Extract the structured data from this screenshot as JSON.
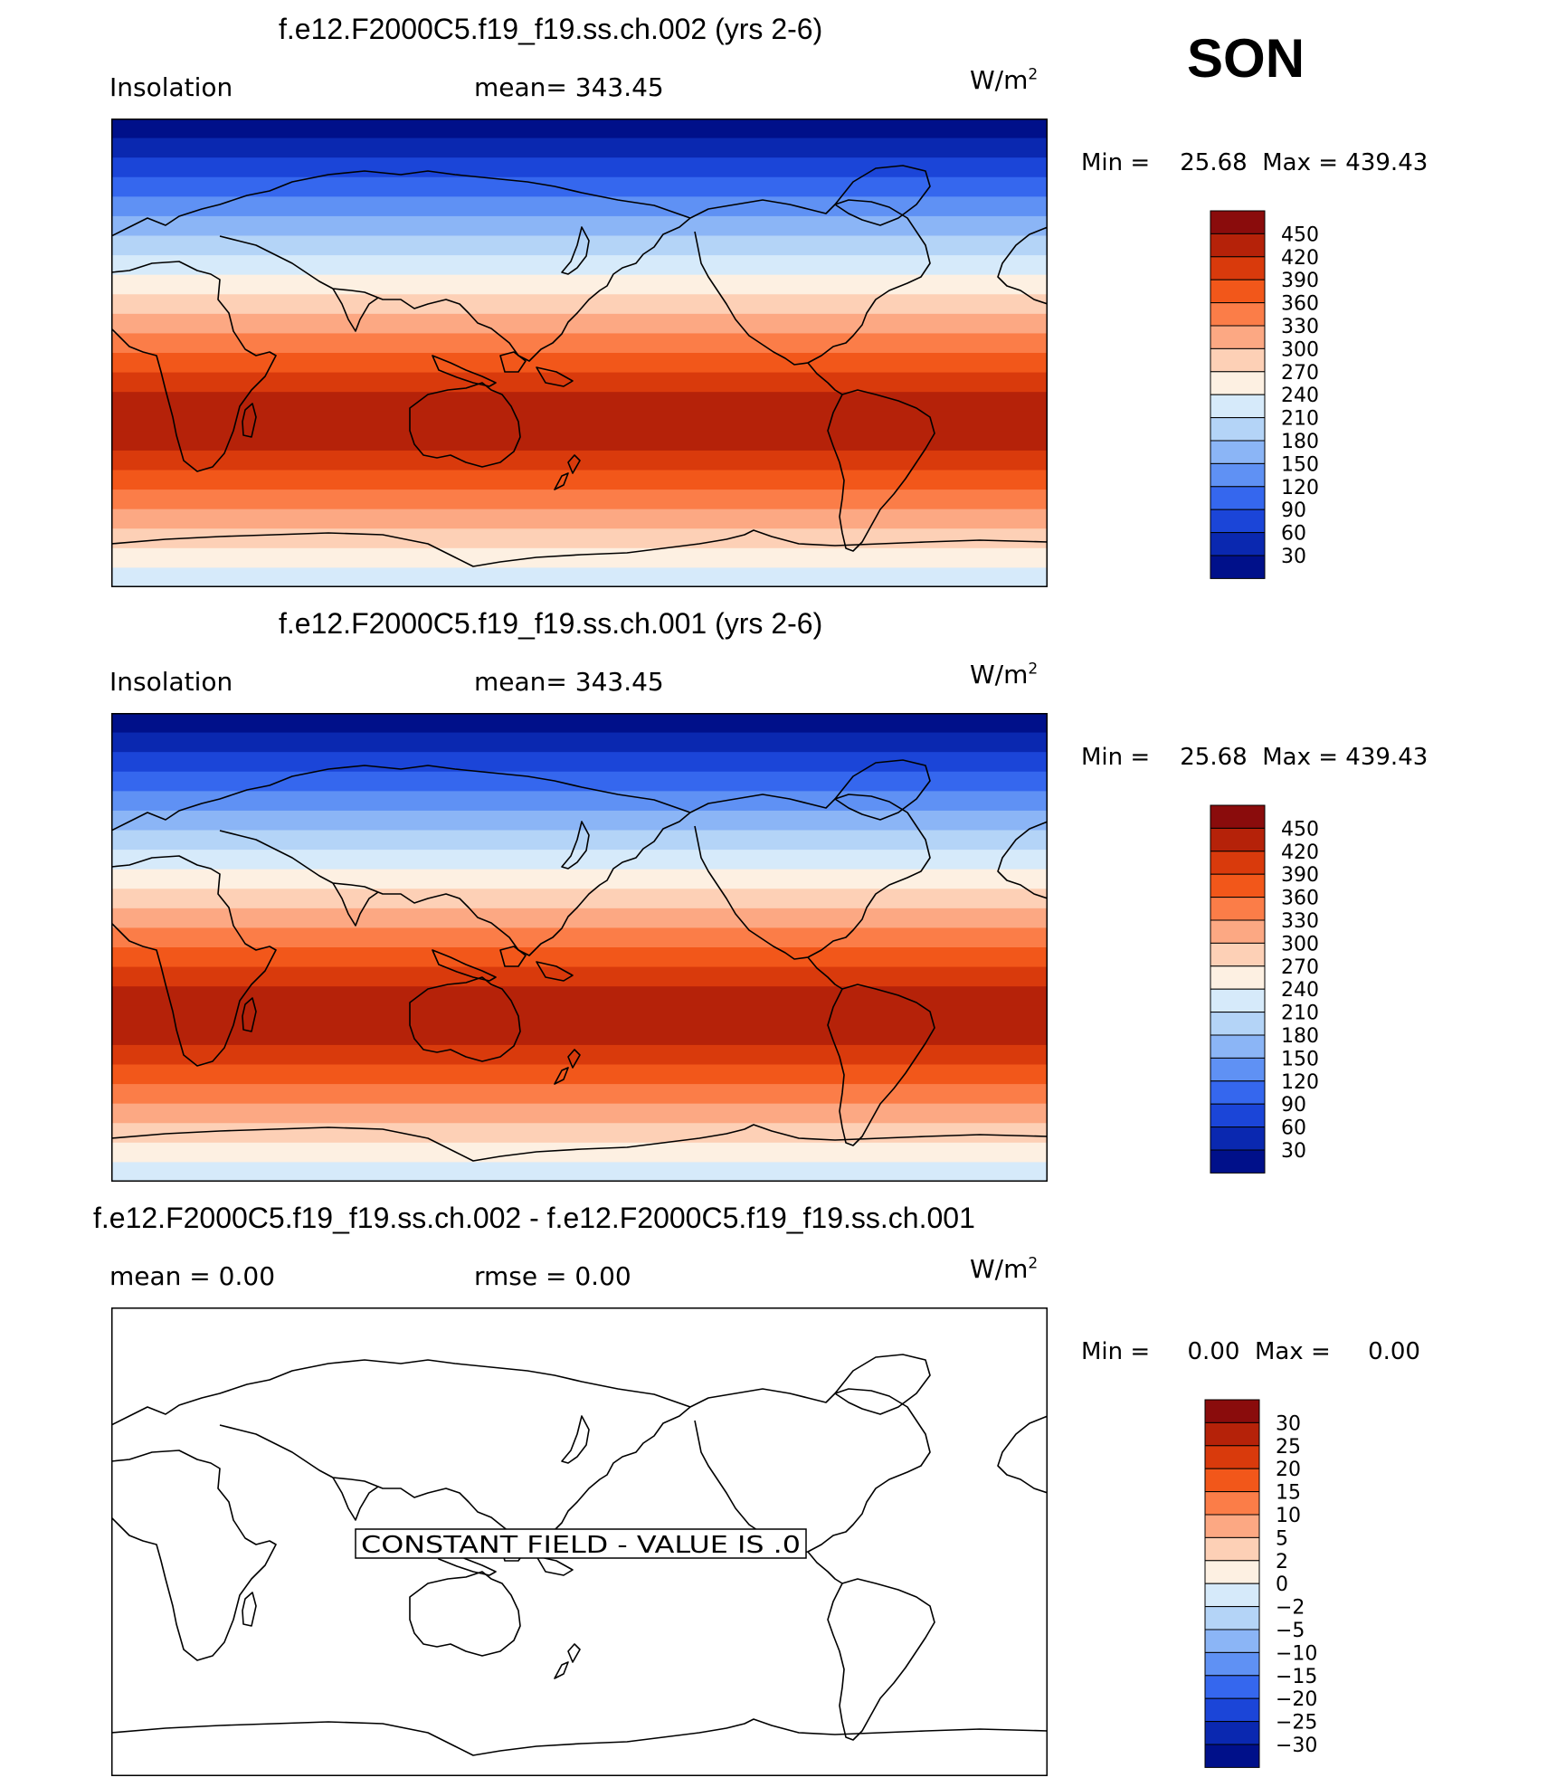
{
  "season": "SON",
  "panels": [
    {
      "title": "f.e12.F2000C5.f19_f19.ss.ch.002 (yrs 2-6)",
      "left_label": "Insolation",
      "mid_label": "mean=  343.45",
      "units": "W/m",
      "units_sup": "2",
      "min_label": "Min =",
      "min_value": "25.68",
      "max_label": "Max =",
      "max_value": "439.43",
      "field": "insolation"
    },
    {
      "title": "f.e12.F2000C5.f19_f19.ss.ch.001 (yrs 2-6)",
      "left_label": "Insolation",
      "mid_label": "mean=  343.45",
      "units": "W/m",
      "units_sup": "2",
      "min_label": "Min =",
      "min_value": "25.68",
      "max_label": "Max =",
      "max_value": "439.43",
      "field": "insolation"
    },
    {
      "title": "f.e12.F2000C5.f19_f19.ss.ch.002 - f.e12.F2000C5.f19_f19.ss.ch.001",
      "left_label": "mean =     0.00",
      "mid_label": "rmse =     0.00",
      "units": "W/m",
      "units_sup": "2",
      "min_label": "Min =",
      "min_value": "0.00",
      "max_label": "Max =",
      "max_value": "0.00",
      "field": "constant",
      "annotation": "CONSTANT FIELD - VALUE IS .0"
    }
  ],
  "colorbar_insolation": {
    "labels": [
      "450",
      "420",
      "390",
      "360",
      "330",
      "300",
      "270",
      "240",
      "210",
      "180",
      "150",
      "120",
      "90",
      "60",
      "30"
    ],
    "colors": [
      "#8a0c0c",
      "#b52209",
      "#d93a0c",
      "#f2571a",
      "#fb7d48",
      "#fca883",
      "#fdd0b6",
      "#fdf0e2",
      "#d6eafa",
      "#b4d4f7",
      "#8bb5f6",
      "#5f91f4",
      "#3567ee",
      "#1b45d8",
      "#0a28b0",
      "#00108a"
    ]
  },
  "colorbar_diff": {
    "labels": [
      "30",
      "25",
      "20",
      "15",
      "10",
      "5",
      "2",
      "0",
      "−2",
      "−5",
      "−10",
      "−15",
      "−20",
      "−25",
      "−30"
    ],
    "colors": [
      "#8a0c0c",
      "#b52209",
      "#d93a0c",
      "#f2571a",
      "#fb7d48",
      "#fca883",
      "#fdd0b6",
      "#fdf0e2",
      "#d6eafa",
      "#b4d4f7",
      "#8bb5f6",
      "#5f91f4",
      "#3567ee",
      "#1b45d8",
      "#0a28b0",
      "#00108a"
    ]
  },
  "map_band_colors": [
    "#00108a",
    "#0a28b0",
    "#1b45d8",
    "#3567ee",
    "#5f91f4",
    "#8bb5f6",
    "#b4d4f7",
    "#d6eafa",
    "#fdf0e2",
    "#fdd0b6",
    "#fca883",
    "#fb7d48",
    "#f2571a",
    "#d93a0c",
    "#b52209",
    "#b52209",
    "#b52209",
    "#d93a0c",
    "#f2571a",
    "#fb7d48",
    "#fca883",
    "#fdd0b6",
    "#fdf0e2",
    "#d6eafa"
  ]
}
